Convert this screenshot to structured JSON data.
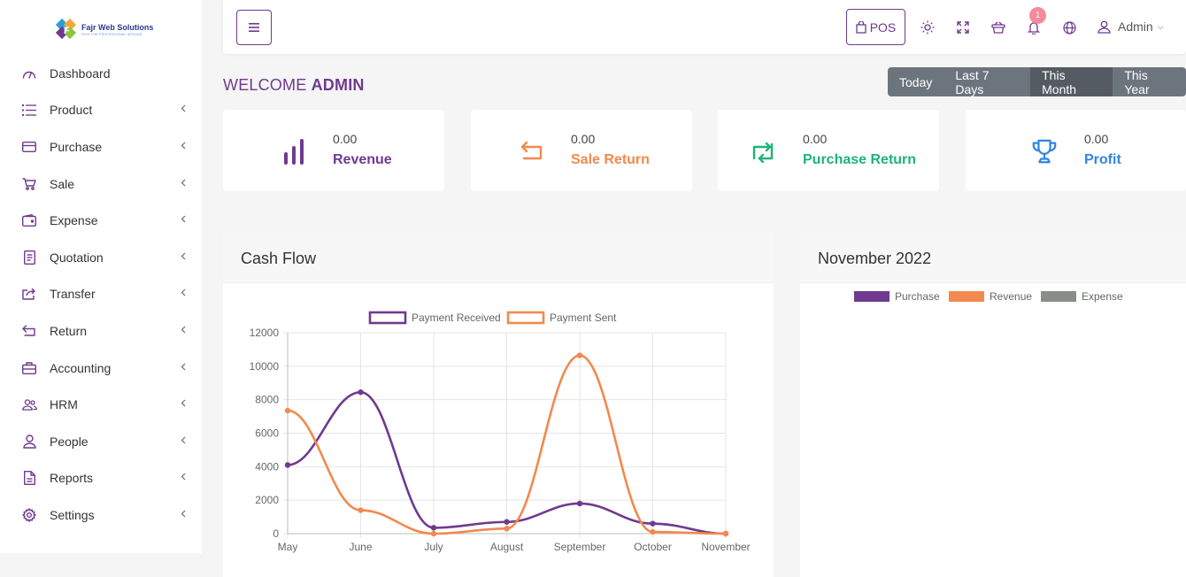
{
  "brand": {
    "title": "Fajr Web Solutions",
    "tagline": "GIVE THE PROFESSIONAL AROUND"
  },
  "sidebar": {
    "items": [
      {
        "label": "Dashboard",
        "icon": "speedometer-icon",
        "submenu": false
      },
      {
        "label": "Product",
        "icon": "list-icon",
        "submenu": true
      },
      {
        "label": "Purchase",
        "icon": "credit-card-icon",
        "submenu": true
      },
      {
        "label": "Sale",
        "icon": "cart-icon",
        "submenu": true
      },
      {
        "label": "Expense",
        "icon": "wallet-icon",
        "submenu": true
      },
      {
        "label": "Quotation",
        "icon": "document-icon",
        "submenu": true
      },
      {
        "label": "Transfer",
        "icon": "share-icon",
        "submenu": true
      },
      {
        "label": "Return",
        "icon": "return-arrow-icon",
        "submenu": true
      },
      {
        "label": "Accounting",
        "icon": "briefcase-icon",
        "submenu": true
      },
      {
        "label": "HRM",
        "icon": "users-icon",
        "submenu": true
      },
      {
        "label": "People",
        "icon": "user-icon",
        "submenu": true
      },
      {
        "label": "Reports",
        "icon": "file-icon",
        "submenu": true
      },
      {
        "label": "Settings",
        "icon": "gear-icon",
        "submenu": true
      }
    ]
  },
  "topbar": {
    "pos_label": "POS",
    "notification_count": "1",
    "user_label": "Admin"
  },
  "welcome": {
    "prefix": "WELCOME",
    "name": "ADMIN"
  },
  "filters": [
    {
      "label": "Today",
      "active": false
    },
    {
      "label": "Last 7 Days",
      "active": false
    },
    {
      "label": "This Month",
      "active": true
    },
    {
      "label": "This Year",
      "active": false
    }
  ],
  "stats": [
    {
      "value": "0.00",
      "label": "Revenue",
      "color": "#6f3a8f",
      "icon": "bar-chart-icon"
    },
    {
      "value": "0.00",
      "label": "Sale Return",
      "color": "#f2894e",
      "icon": "return-arrow-icon"
    },
    {
      "value": "0.00",
      "label": "Purchase Return",
      "color": "#1fb37a",
      "icon": "exchange-icon"
    },
    {
      "value": "0.00",
      "label": "Profit",
      "color": "#2f86e0",
      "icon": "trophy-icon"
    }
  ],
  "cashflow": {
    "title": "Cash Flow"
  },
  "monthly": {
    "title": "November 2022"
  },
  "chart_data": [
    {
      "type": "line",
      "title": "",
      "x": [
        "May",
        "June",
        "July",
        "August",
        "September",
        "October",
        "November"
      ],
      "ylim": [
        0,
        12000
      ],
      "yticks": [
        0,
        2000,
        4000,
        6000,
        8000,
        10000,
        12000
      ],
      "grid": true,
      "legend_position": "top",
      "series": [
        {
          "name": "Payment Received",
          "color": "#6f3a8f",
          "values": [
            4100,
            8450,
            350,
            700,
            1800,
            600,
            0
          ]
        },
        {
          "name": "Payment Sent",
          "color": "#f2894e",
          "values": [
            7350,
            1400,
            0,
            300,
            10650,
            100,
            0
          ]
        }
      ]
    },
    {
      "type": "bar",
      "title": "",
      "categories": [],
      "legend_position": "top",
      "series": [
        {
          "name": "Purchase",
          "color": "#6f3a8f",
          "values": []
        },
        {
          "name": "Revenue",
          "color": "#f2894e",
          "values": []
        },
        {
          "name": "Expense",
          "color": "#868e86",
          "values": []
        }
      ]
    }
  ]
}
